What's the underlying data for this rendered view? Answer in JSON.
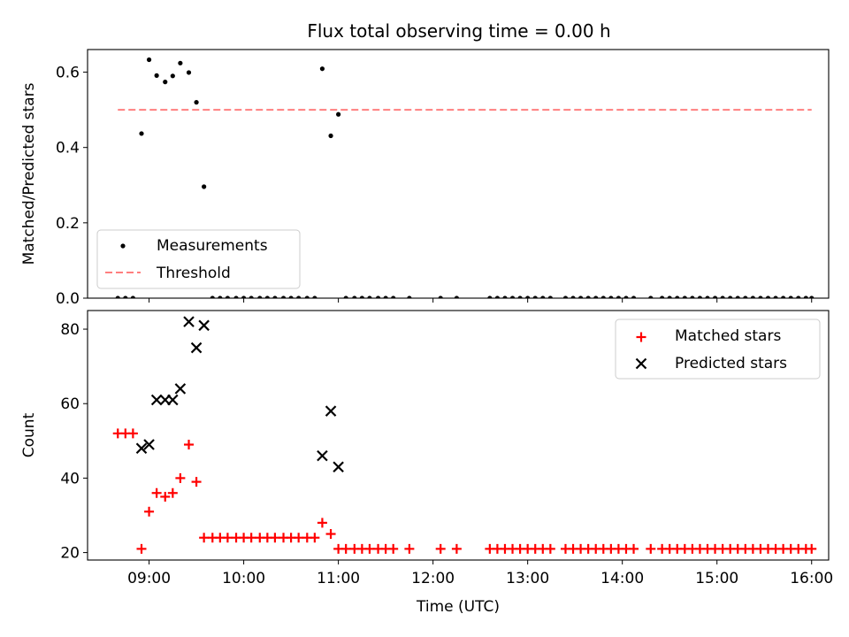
{
  "figure": {
    "title": "Flux total observing time = 0.00 h"
  },
  "chart_data": [
    {
      "type": "scatter",
      "panel": "top",
      "ylabel": "Matched/Predicted stars",
      "xlabel": "",
      "xlim": [
        8.35,
        16.18
      ],
      "ylim": [
        0,
        0.66
      ],
      "yticks": [
        0.0,
        0.2,
        0.4,
        0.6
      ],
      "ytick_labels": [
        "0.0",
        "0.2",
        "0.4",
        "0.6"
      ],
      "xticks": [
        9,
        10,
        11,
        12,
        13,
        14,
        15,
        16
      ],
      "legend_position": "lower-left",
      "series": [
        {
          "name": "Measurements",
          "kind": "scatter",
          "marker": "dot",
          "color": "#000000",
          "x": [
            8.92,
            9.0,
            9.08,
            9.17,
            9.25,
            9.33,
            9.42,
            9.5,
            9.58,
            10.83,
            10.92,
            11.0,
            8.67,
            8.75,
            8.83,
            9.67,
            9.75,
            9.83,
            9.92,
            10.0,
            10.08,
            10.17,
            10.25,
            10.33,
            10.42,
            10.5,
            10.58,
            10.67,
            10.75,
            11.08,
            11.17,
            11.25,
            11.33,
            11.42,
            11.5,
            11.58,
            11.75,
            12.08,
            12.25,
            12.6,
            12.68,
            12.76,
            12.84,
            12.92,
            13.0,
            13.08,
            13.16,
            13.24,
            13.4,
            13.48,
            13.56,
            13.64,
            13.72,
            13.8,
            13.88,
            13.96,
            14.04,
            14.12,
            14.3,
            14.42,
            14.5,
            14.58,
            14.66,
            14.74,
            14.82,
            14.9,
            14.98,
            15.06,
            15.14,
            15.22,
            15.3,
            15.38,
            15.46,
            15.54,
            15.62,
            15.7,
            15.78,
            15.86,
            15.94,
            16.0
          ],
          "y": [
            0.437,
            0.633,
            0.591,
            0.574,
            0.59,
            0.624,
            0.599,
            0.52,
            0.296,
            0.609,
            0.431,
            0.488,
            0,
            0,
            0,
            0,
            0,
            0,
            0,
            0,
            0,
            0,
            0,
            0,
            0,
            0,
            0,
            0,
            0,
            0,
            0,
            0,
            0,
            0,
            0,
            0,
            0,
            0,
            0,
            0,
            0,
            0,
            0,
            0,
            0,
            0,
            0,
            0,
            0,
            0,
            0,
            0,
            0,
            0,
            0,
            0,
            0,
            0,
            0,
            0,
            0,
            0,
            0,
            0,
            0,
            0,
            0,
            0,
            0,
            0,
            0,
            0,
            0,
            0,
            0,
            0,
            0,
            0,
            0,
            0
          ]
        },
        {
          "name": "Threshold",
          "kind": "line",
          "style": "dashed",
          "color": "#ff7f7f",
          "x": [
            8.67,
            16.0
          ],
          "y": [
            0.5,
            0.5
          ]
        }
      ]
    },
    {
      "type": "scatter",
      "panel": "bottom",
      "ylabel": "Count",
      "xlabel": "Time (UTC)",
      "xlim": [
        8.35,
        16.18
      ],
      "ylim": [
        18,
        85
      ],
      "yticks": [
        20,
        40,
        60,
        80
      ],
      "ytick_labels": [
        "20",
        "40",
        "60",
        "80"
      ],
      "xticks": [
        9,
        10,
        11,
        12,
        13,
        14,
        15,
        16
      ],
      "xtick_labels": [
        "09:00",
        "10:00",
        "11:00",
        "12:00",
        "13:00",
        "14:00",
        "15:00",
        "16:00"
      ],
      "legend_position": "top-right",
      "series": [
        {
          "name": "Matched stars",
          "marker": "plus",
          "color": "#ff0000",
          "x": [
            8.67,
            8.75,
            8.83,
            8.92,
            9.0,
            9.08,
            9.17,
            9.25,
            9.33,
            9.42,
            9.5,
            9.58,
            9.67,
            9.75,
            9.83,
            9.92,
            10.0,
            10.08,
            10.17,
            10.25,
            10.33,
            10.42,
            10.5,
            10.58,
            10.67,
            10.75,
            10.83,
            10.92,
            11.0,
            11.08,
            11.17,
            11.25,
            11.33,
            11.42,
            11.5,
            11.58,
            11.75,
            12.08,
            12.25,
            12.6,
            12.68,
            12.76,
            12.84,
            12.92,
            13.0,
            13.08,
            13.16,
            13.24,
            13.4,
            13.48,
            13.56,
            13.64,
            13.72,
            13.8,
            13.88,
            13.96,
            14.04,
            14.12,
            14.3,
            14.42,
            14.5,
            14.58,
            14.66,
            14.74,
            14.82,
            14.9,
            14.98,
            15.06,
            15.14,
            15.22,
            15.3,
            15.38,
            15.46,
            15.54,
            15.62,
            15.7,
            15.78,
            15.86,
            15.94,
            16.0
          ],
          "y": [
            52,
            52,
            52,
            21,
            31,
            36,
            35,
            36,
            40,
            49,
            39,
            24,
            24,
            24,
            24,
            24,
            24,
            24,
            24,
            24,
            24,
            24,
            24,
            24,
            24,
            24,
            28,
            25,
            21,
            21,
            21,
            21,
            21,
            21,
            21,
            21,
            21,
            21,
            21,
            21,
            21,
            21,
            21,
            21,
            21,
            21,
            21,
            21,
            21,
            21,
            21,
            21,
            21,
            21,
            21,
            21,
            21,
            21,
            21,
            21,
            21,
            21,
            21,
            21,
            21,
            21,
            21,
            21,
            21,
            21,
            21,
            21,
            21,
            21,
            21,
            21,
            21,
            21,
            21,
            21
          ]
        },
        {
          "name": "Predicted stars",
          "marker": "x",
          "color": "#000000",
          "x": [
            8.92,
            9.0,
            9.08,
            9.17,
            9.25,
            9.33,
            9.42,
            9.5,
            9.58,
            10.83,
            10.92,
            11.0
          ],
          "y": [
            48,
            49,
            61,
            61,
            61,
            64,
            82,
            75,
            81,
            46,
            58,
            43
          ]
        }
      ]
    }
  ]
}
